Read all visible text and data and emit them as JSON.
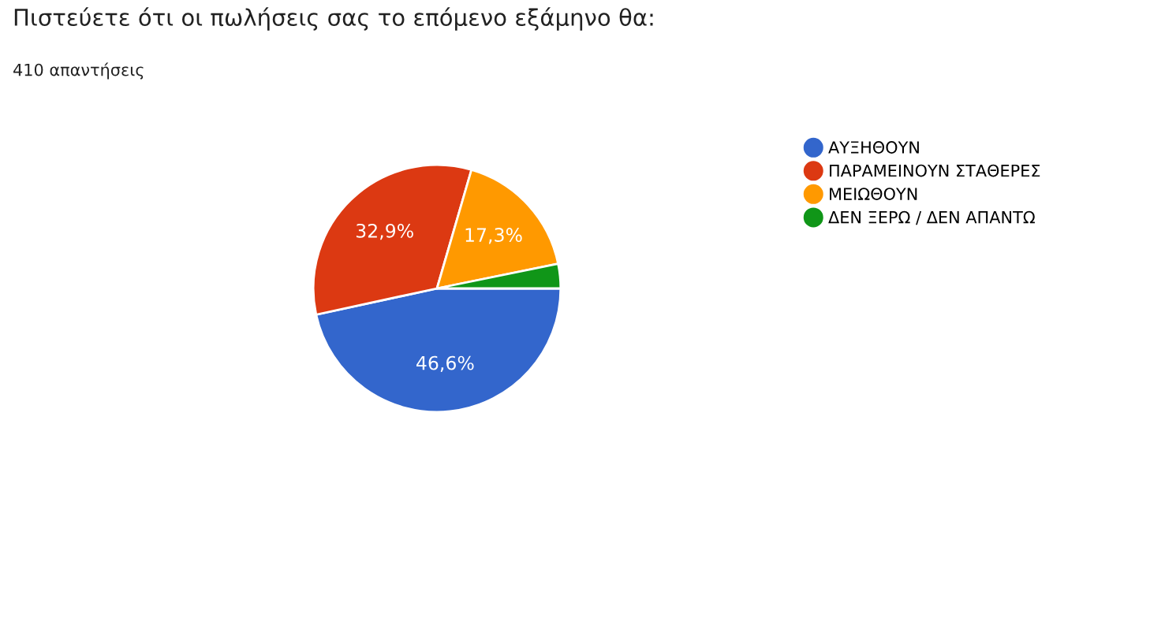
{
  "chart_data": {
    "type": "pie",
    "title": "Πιστεύετε ότι οι πωλήσεις σας το επόμενο εξάμηνο θα:",
    "subtitle": "410 απαντήσεις",
    "categories": [
      "ΑΥΞΗΘΟΥΝ",
      "ΠΑΡΑΜΕΙΝΟΥΝ ΣΤΑΘΕΡΕΣ",
      "ΜΕΙΩΘΟΥΝ",
      "ΔΕΝ ΞΕΡΩ / ΔΕΝ ΑΠΑΝΤΩ"
    ],
    "values": [
      46.6,
      32.9,
      17.3,
      3.2
    ],
    "colors": [
      "#3366cc",
      "#dc3912",
      "#ff9900",
      "#109618"
    ],
    "value_labels": [
      "46,6%",
      "32,9%",
      "17,3%",
      null
    ],
    "legend": "right"
  }
}
